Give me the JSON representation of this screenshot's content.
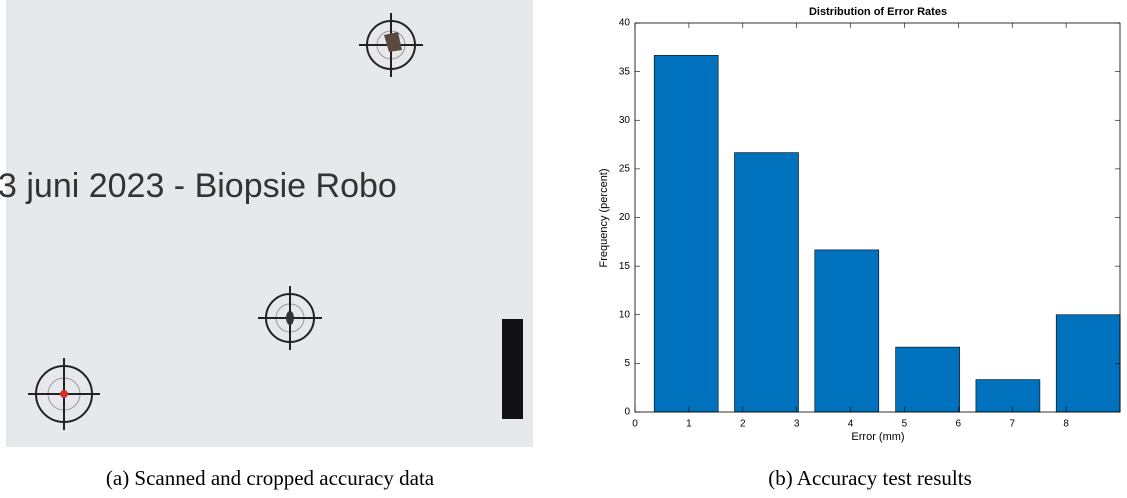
{
  "photo": {
    "text": "3 juni 2023   -   Biopsie Robo"
  },
  "chart_data": {
    "type": "bar",
    "title": "Distribution of Error Rates",
    "x_label": "Error (mm)",
    "y_label": "Frequency (percent)",
    "x": [
      0.95,
      2.44,
      3.93,
      5.43,
      6.92,
      8.41
    ],
    "values": [
      36.67,
      26.67,
      16.67,
      6.67,
      3.33,
      10
    ],
    "color": "#0072bd",
    "xlim": [
      0,
      9
    ],
    "xticks": [
      0,
      1,
      2,
      3,
      4,
      5,
      6,
      7,
      8
    ],
    "ylim": [
      0,
      40
    ],
    "yticks": [
      0,
      5,
      10,
      15,
      20,
      25,
      30,
      35,
      40
    ]
  },
  "captions": [
    "(a) Scanned and cropped accuracy data",
    "(b) Accuracy test results"
  ]
}
